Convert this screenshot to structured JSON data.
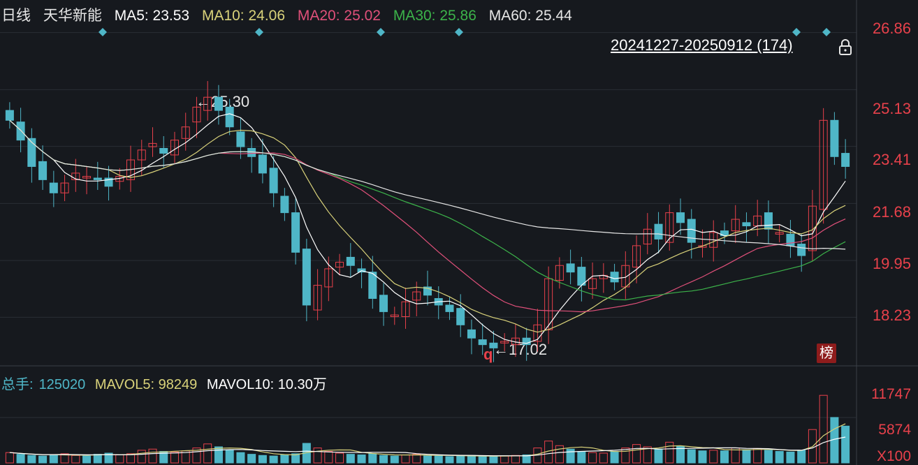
{
  "legend": {
    "period": "日线",
    "stock_name": "天华新能",
    "ma5": "MA5: 23.53",
    "ma10": "MA10: 24.06",
    "ma20": "MA20: 25.02",
    "ma30": "MA30: 25.86",
    "ma60": "MA60: 25.44"
  },
  "colors": {
    "background": "#16191e",
    "up": "#e8414b",
    "down": "#4fb6c7",
    "ma5": "#ffffff",
    "ma10": "#d9d27a",
    "ma20": "#e0507a",
    "ma30": "#3cb34a",
    "ma60": "#e6e6e6",
    "grid": "#2a2e35"
  },
  "range_label": "20241227-20250912 (174)",
  "lock_icon": "lock-icon",
  "y_axis": {
    "labels": [
      "26.86",
      "25.13",
      "23.41",
      "21.68",
      "19.95",
      "18.23"
    ]
  },
  "annotations": {
    "high": "25.30",
    "low": "17.02",
    "q_marker": "q",
    "badge": "榜"
  },
  "volume": {
    "legend_total_label": "总手:",
    "legend_total_value": "125020",
    "legend_mavol5": "MAVOL5: 98249",
    "legend_mavol10": "MAVOL10: 10.30万",
    "y_labels": [
      "11747",
      "5874",
      "X100"
    ]
  },
  "chart_data": {
    "type": "candlestick",
    "period": "日线",
    "date_range": "20241227-20250912",
    "bar_count": 174,
    "ylim": [
      16.8,
      27.0
    ],
    "y_ticks": [
      26.86,
      25.13,
      23.41,
      21.68,
      19.95,
      18.23
    ],
    "series": [
      {
        "name": "MA5",
        "last": 23.53
      },
      {
        "name": "MA10",
        "last": 24.06
      },
      {
        "name": "MA20",
        "last": 25.02
      },
      {
        "name": "MA30",
        "last": 25.86
      },
      {
        "name": "MA60",
        "last": 25.44
      }
    ],
    "high_marked": 25.3,
    "low_marked": 17.02,
    "close_trend": [
      24.2,
      23.6,
      22.8,
      22.4,
      22.0,
      22.3,
      22.6,
      22.5,
      22.4,
      22.2,
      22.5,
      23.0,
      23.3,
      23.5,
      23.2,
      23.6,
      24.0,
      24.6,
      24.9,
      24.5,
      24.0,
      23.4,
      23.1,
      22.6,
      22.0,
      21.4,
      20.2,
      18.6,
      19.2,
      19.7,
      19.9,
      19.8,
      19.6,
      18.8,
      18.4,
      18.3,
      18.7,
      19.0,
      18.9,
      18.6,
      18.4,
      18.0,
      17.6,
      17.4,
      17.3,
      17.5,
      17.6,
      17.4,
      18.0,
      19.4,
      19.8,
      19.6,
      19.2,
      19.4,
      19.5,
      19.3,
      19.8,
      20.4,
      20.9,
      20.6,
      21.4,
      21.1,
      20.5,
      20.4,
      20.8,
      20.7,
      21.2,
      21.0,
      21.3,
      20.9,
      20.8,
      20.4,
      20.1,
      21.6,
      24.2,
      23.1,
      22.8
    ]
  },
  "volume_data": {
    "values": [
      1800,
      1500,
      1300,
      1200,
      1400,
      1600,
      1300,
      1200,
      1500,
      1700,
      1400,
      1600,
      2200,
      2400,
      2000,
      1900,
      2100,
      2600,
      3300,
      2800,
      2200,
      1800,
      1500,
      1300,
      1200,
      1400,
      1600,
      3400,
      2600,
      2000,
      1700,
      1500,
      1400,
      1600,
      1300,
      1200,
      1400,
      1500,
      1300,
      1200,
      1100,
      1200,
      1300,
      1200,
      1100,
      1200,
      1300,
      1400,
      2600,
      3800,
      3000,
      2400,
      2000,
      1800,
      1700,
      2000,
      2600,
      3200,
      2800,
      2400,
      3600,
      2900,
      2300,
      2100,
      2200,
      2100,
      2600,
      2300,
      2500,
      2200,
      2000,
      1900,
      2200,
      5800,
      11747,
      7900,
      6400
    ],
    "ylim": [
      0,
      12500
    ],
    "labels": [
      "11747",
      "5874"
    ]
  }
}
